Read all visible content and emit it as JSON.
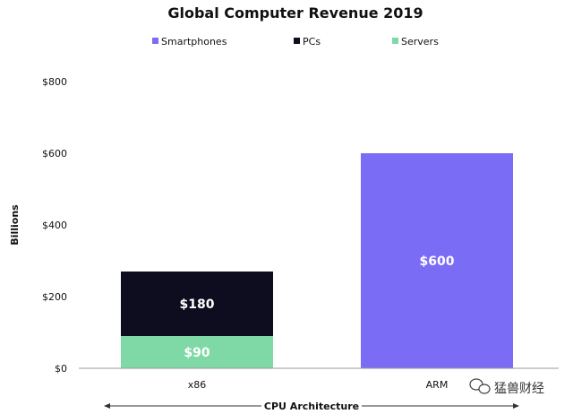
{
  "chart_data": {
    "type": "bar",
    "stacked": true,
    "title": "Global Computer Revenue 2019",
    "categories": [
      "x86",
      "ARM"
    ],
    "series": [
      {
        "name": "Servers",
        "color": "#7fd9a6",
        "values": [
          90,
          0
        ]
      },
      {
        "name": "PCs",
        "color": "#0d0d1f",
        "values": [
          180,
          0
        ]
      },
      {
        "name": "Smartphones",
        "color": "#7b6cf6",
        "values": [
          0,
          600
        ]
      }
    ],
    "legend_order": [
      "Smartphones",
      "PCs",
      "Servers"
    ],
    "legend_position": "top",
    "data_labels": [
      {
        "category": "x86",
        "series": "Servers",
        "text": "$90"
      },
      {
        "category": "x86",
        "series": "PCs",
        "text": "$180"
      },
      {
        "category": "ARM",
        "series": "Smartphones",
        "text": "$600"
      }
    ],
    "ylim": [
      0,
      800
    ],
    "yticks": [
      0,
      200,
      400,
      600,
      800
    ],
    "ytick_labels": [
      "$0",
      "$200",
      "$400",
      "$600",
      "$800"
    ],
    "ylabel": "Billions",
    "xlabel": "CPU Architecture",
    "grid": false
  },
  "watermark": {
    "text": "猛兽财经",
    "icon": "wechat-icon"
  }
}
